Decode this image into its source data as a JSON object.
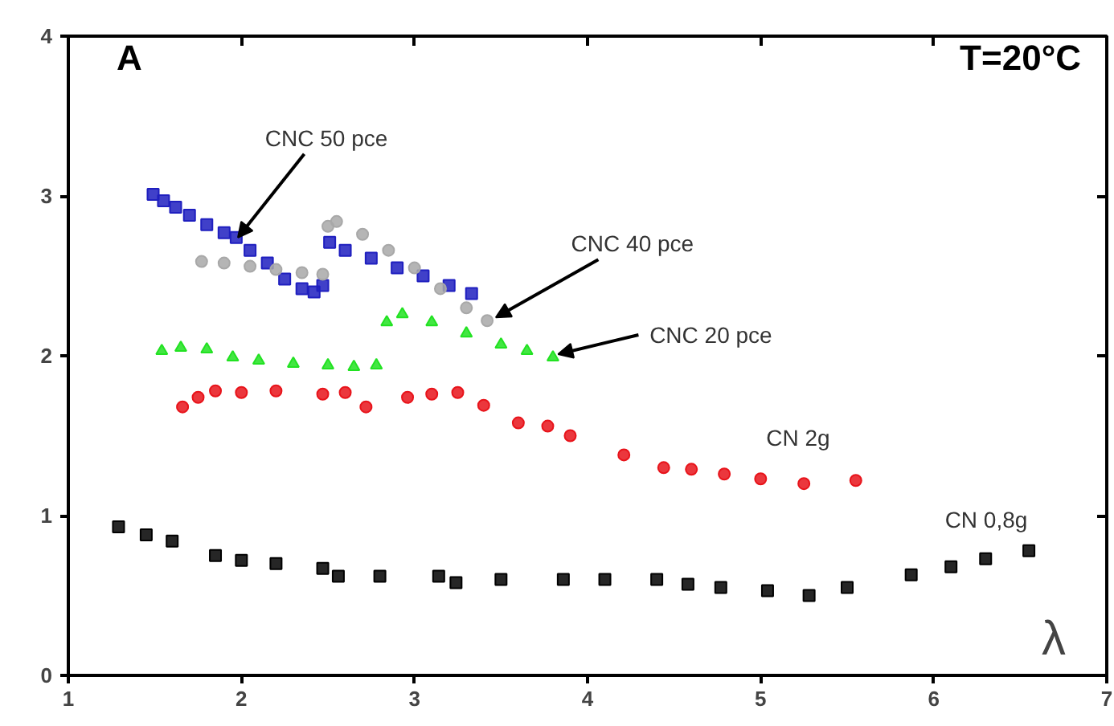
{
  "chart_data": {
    "type": "scatter",
    "xlabel": "λ",
    "xlim": [
      1,
      7
    ],
    "ylim": [
      0,
      4
    ],
    "xticks": [
      1,
      2,
      3,
      4,
      5,
      6,
      7
    ],
    "yticks": [
      0,
      1,
      2,
      3,
      4
    ],
    "grid": false,
    "annotations": [
      "A",
      "T=20°C",
      {
        "text": "CNC 50 pce",
        "x": 1.98,
        "y": 2.74
      },
      {
        "text": "CNC 40 pce",
        "x": 3.47,
        "y": 2.24
      },
      {
        "text": "CNC 20 pce",
        "x": 3.83,
        "y": 2.01
      },
      "CN 2g",
      "CN 0,8g"
    ],
    "series": [
      {
        "color": "#000000",
        "marker": "square",
        "x": [
          1.29,
          1.45,
          1.6,
          1.85,
          2.0,
          2.2,
          2.47,
          2.56,
          2.8,
          3.14,
          3.24,
          3.5,
          3.86,
          4.1,
          4.4,
          4.58,
          4.77,
          5.04,
          5.28,
          5.5,
          5.87,
          6.1,
          6.3,
          6.55
        ],
        "values": [
          0.93,
          0.88,
          0.84,
          0.75,
          0.72,
          0.7,
          0.67,
          0.62,
          0.62,
          0.62,
          0.58,
          0.6,
          0.6,
          0.6,
          0.6,
          0.57,
          0.55,
          0.53,
          0.5,
          0.55,
          0.63,
          0.68,
          0.73,
          0.78
        ]
      },
      {
        "color": "#e8141b",
        "marker": "circle",
        "x": [
          1.66,
          1.75,
          1.85,
          2.0,
          2.2,
          2.47,
          2.6,
          2.72,
          2.96,
          3.1,
          3.25,
          3.4,
          3.6,
          3.77,
          3.9,
          4.21,
          4.44,
          4.6,
          4.79,
          5.0,
          5.25,
          5.55
        ],
        "values": [
          1.68,
          1.74,
          1.78,
          1.77,
          1.78,
          1.76,
          1.77,
          1.68,
          1.74,
          1.76,
          1.77,
          1.69,
          1.58,
          1.56,
          1.5,
          1.38,
          1.3,
          1.29,
          1.26,
          1.23,
          1.2,
          1.22
        ]
      },
      {
        "color": "#22e222",
        "marker": "triangle",
        "x": [
          1.54,
          1.65,
          1.8,
          1.95,
          2.1,
          2.3,
          2.5,
          2.65,
          2.78,
          2.84,
          2.93,
          3.1,
          3.3,
          3.5,
          3.65,
          3.8
        ],
        "values": [
          2.03,
          2.05,
          2.04,
          1.99,
          1.97,
          1.95,
          1.94,
          1.93,
          1.94,
          2.21,
          2.26,
          2.21,
          2.14,
          2.07,
          2.03,
          1.99
        ]
      },
      {
        "color": "#1f1fbf",
        "marker": "square",
        "x": [
          1.49,
          1.55,
          1.62,
          1.7,
          1.8,
          1.9,
          1.97,
          2.05,
          2.15,
          2.25,
          2.35,
          2.42,
          2.47,
          2.51,
          2.6,
          2.75,
          2.9,
          3.05,
          3.2,
          3.33
        ],
        "values": [
          3.01,
          2.97,
          2.93,
          2.88,
          2.82,
          2.77,
          2.74,
          2.66,
          2.58,
          2.48,
          2.42,
          2.4,
          2.44,
          2.71,
          2.66,
          2.61,
          2.55,
          2.5,
          2.44,
          2.39
        ]
      },
      {
        "color": "#a8a8a8",
        "marker": "circle",
        "x": [
          1.77,
          1.9,
          2.05,
          2.2,
          2.35,
          2.47,
          2.5,
          2.55,
          2.7,
          2.85,
          3.0,
          3.15,
          3.3,
          3.42
        ],
        "values": [
          2.59,
          2.58,
          2.56,
          2.54,
          2.52,
          2.51,
          2.81,
          2.84,
          2.76,
          2.66,
          2.55,
          2.42,
          2.3,
          2.22
        ]
      }
    ]
  }
}
